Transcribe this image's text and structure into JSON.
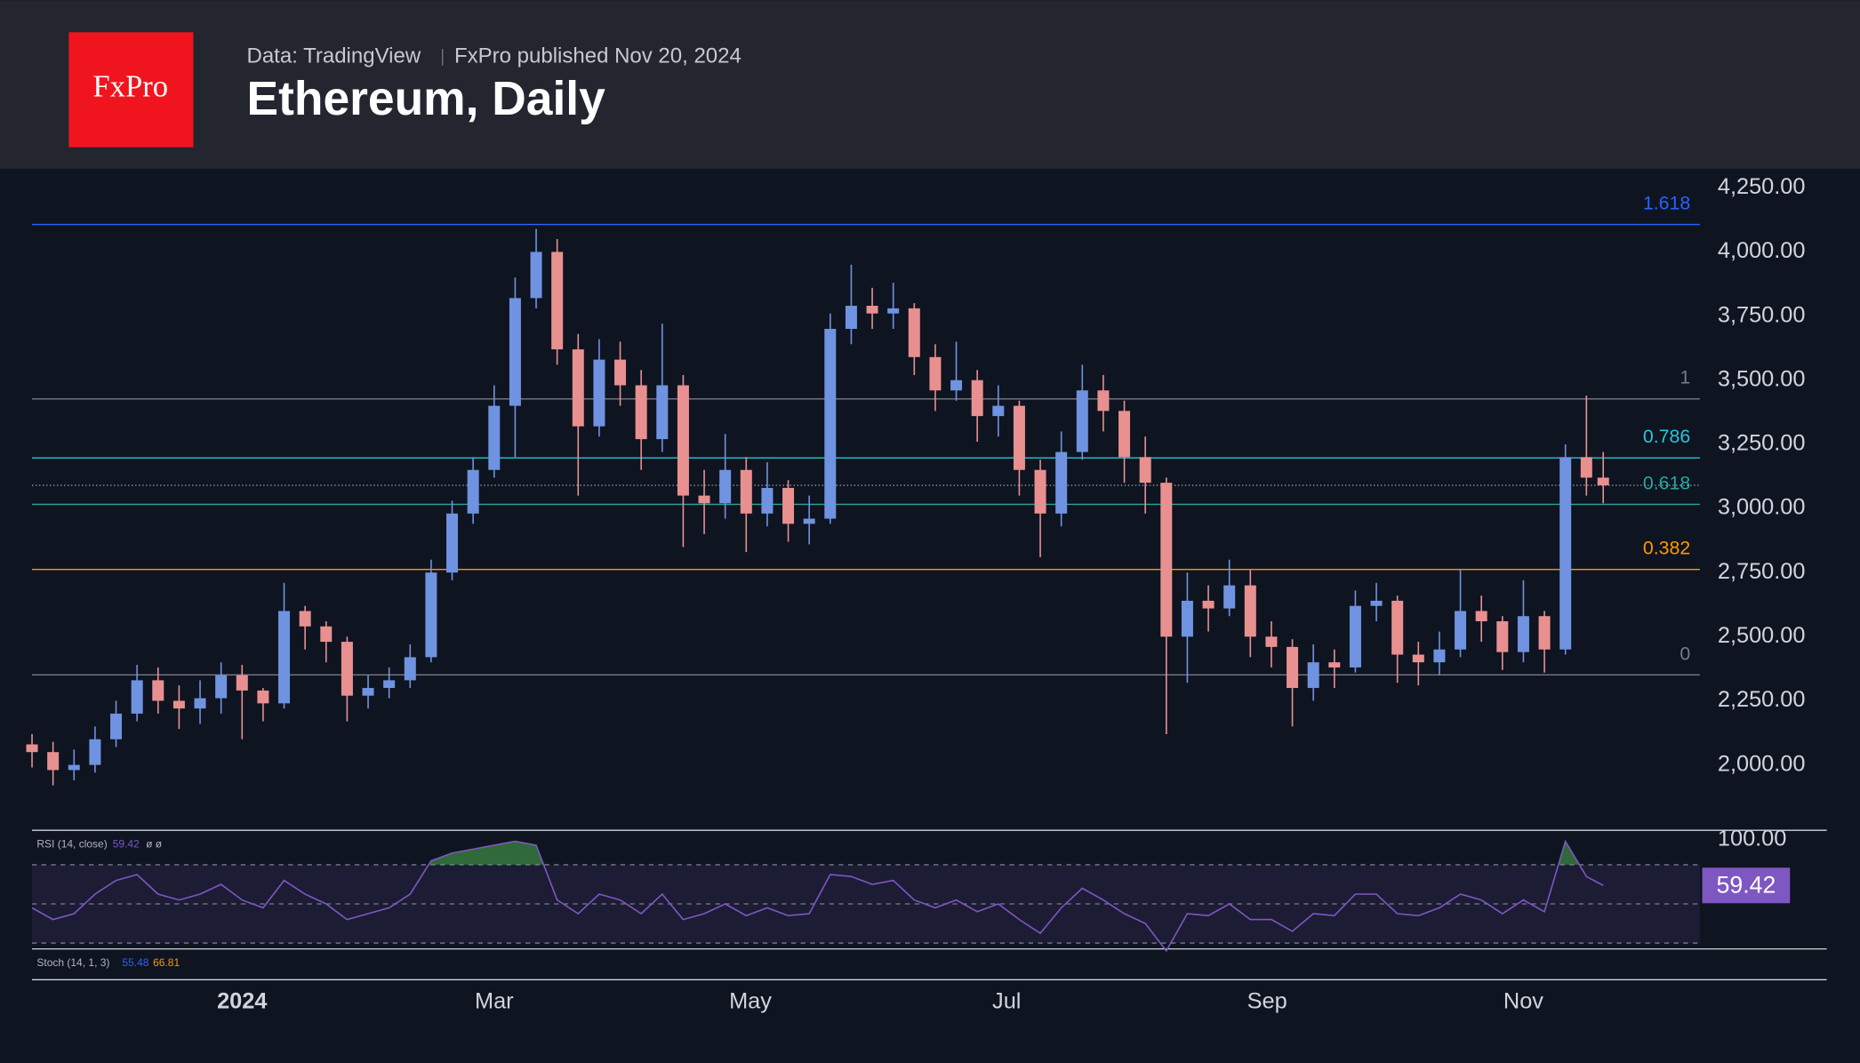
{
  "chart_data": {
    "type": "candlestick",
    "brand": "FxPro",
    "source": "Data: TradingView",
    "published": "FxPro published Nov 20, 2024",
    "title": "Ethereum, Daily",
    "up_color": "#6f93e0",
    "down_color": "#e89090",
    "x": [
      -50,
      -45,
      -40,
      -35,
      -30,
      -25,
      -20,
      -15,
      -10,
      -5,
      0,
      5,
      10,
      15,
      20,
      25,
      30,
      35,
      40,
      45,
      50,
      55,
      60,
      65,
      70,
      75,
      80,
      85,
      90,
      95,
      100,
      105,
      110,
      115,
      120,
      125,
      130,
      135,
      140,
      145,
      150,
      155,
      160,
      165,
      170,
      175,
      180,
      185,
      190,
      195,
      200,
      205,
      210,
      215,
      220,
      225,
      230,
      235,
      240,
      245,
      250,
      255,
      260,
      265,
      270,
      275,
      280,
      285,
      290,
      295,
      300,
      305,
      310,
      315,
      320,
      324
    ],
    "open": [
      2080,
      2050,
      1980,
      2000,
      2100,
      2200,
      2330,
      2250,
      2220,
      2260,
      2350,
      2290,
      2240,
      2600,
      2540,
      2480,
      2270,
      2300,
      2330,
      2420,
      2750,
      2980,
      3150,
      3400,
      3820,
      4000,
      3620,
      3320,
      3580,
      3480,
      3270,
      3480,
      3050,
      3020,
      3150,
      2980,
      3080,
      2940,
      2960,
      3700,
      3790,
      3760,
      3780,
      3590,
      3460,
      3500,
      3360,
      3400,
      3150,
      2980,
      3220,
      3460,
      3380,
      3200,
      3100,
      2500,
      2640,
      2610,
      2700,
      2500,
      2460,
      2300,
      2400,
      2380,
      2620,
      2640,
      2430,
      2400,
      2450,
      2600,
      2560,
      2440,
      2580,
      2450,
      3200,
      3120
    ],
    "high": [
      2120,
      2090,
      2060,
      2150,
      2250,
      2390,
      2380,
      2310,
      2330,
      2400,
      2390,
      2300,
      2710,
      2620,
      2560,
      2500,
      2350,
      2380,
      2470,
      2800,
      3030,
      3200,
      3480,
      3900,
      4090,
      4050,
      3680,
      3660,
      3650,
      3540,
      3720,
      3520,
      3150,
      3290,
      3200,
      3180,
      3110,
      3050,
      3760,
      3950,
      3860,
      3880,
      3800,
      3640,
      3650,
      3540,
      3480,
      3420,
      3190,
      3300,
      3560,
      3520,
      3420,
      3280,
      3120,
      2750,
      2700,
      2800,
      2760,
      2560,
      2490,
      2470,
      2450,
      2680,
      2710,
      2660,
      2480,
      2520,
      2760,
      2660,
      2580,
      2720,
      2600,
      3250,
      3440,
      3220
    ],
    "low": [
      1990,
      1920,
      1940,
      1970,
      2070,
      2170,
      2200,
      2140,
      2160,
      2200,
      2100,
      2170,
      2220,
      2450,
      2400,
      2170,
      2220,
      2260,
      2300,
      2400,
      2720,
      2940,
      3120,
      3200,
      3780,
      3560,
      3050,
      3280,
      3400,
      3150,
      3220,
      2850,
      2900,
      2960,
      2830,
      2930,
      2870,
      2860,
      2940,
      3640,
      3700,
      3700,
      3520,
      3380,
      3420,
      3260,
      3280,
      3050,
      2810,
      2930,
      3190,
      3300,
      3100,
      2980,
      2120,
      2320,
      2520,
      2580,
      2420,
      2380,
      2150,
      2250,
      2300,
      2360,
      2560,
      2320,
      2310,
      2350,
      2420,
      2480,
      2370,
      2400,
      2360,
      2430,
      3050,
      3020
    ],
    "close": [
      2050,
      1980,
      2000,
      2100,
      2200,
      2330,
      2250,
      2220,
      2260,
      2350,
      2290,
      2240,
      2600,
      2540,
      2480,
      2270,
      2300,
      2330,
      2420,
      2750,
      2980,
      3150,
      3400,
      3820,
      4000,
      3620,
      3320,
      3580,
      3480,
      3270,
      3480,
      3050,
      3020,
      3150,
      2980,
      3080,
      2940,
      2960,
      3700,
      3790,
      3760,
      3780,
      3590,
      3460,
      3500,
      3360,
      3400,
      3150,
      2980,
      3220,
      3460,
      3380,
      3200,
      3100,
      2500,
      2640,
      2610,
      2700,
      2500,
      2460,
      2300,
      2400,
      2380,
      2620,
      2640,
      2430,
      2400,
      2450,
      2600,
      2560,
      2440,
      2580,
      2450,
      3200,
      3120,
      3090
    ],
    "xlim": [
      -50,
      347
    ],
    "xticks": [
      {
        "value": 0,
        "label": "2024"
      },
      {
        "value": 60,
        "label": "Mar"
      },
      {
        "value": 121,
        "label": "May"
      },
      {
        "value": 182,
        "label": "Jul"
      },
      {
        "value": 244,
        "label": "Sep"
      },
      {
        "value": 305,
        "label": "Nov"
      }
    ],
    "ylim": [
      1745,
      4320
    ],
    "yticks": [
      {
        "value": 4250,
        "label": "4,250.00"
      },
      {
        "value": 4000,
        "label": "4,000.00"
      },
      {
        "value": 3750,
        "label": "3,750.00"
      },
      {
        "value": 3500,
        "label": "3,500.00"
      },
      {
        "value": 3250,
        "label": "3,250.00"
      },
      {
        "value": 3000,
        "label": "3,000.00"
      },
      {
        "value": 2750,
        "label": "2,750.00"
      },
      {
        "value": 2500,
        "label": "2,500.00"
      },
      {
        "value": 2250,
        "label": "2,250.00"
      },
      {
        "value": 2000,
        "label": "2,000.00"
      }
    ],
    "fib": [
      {
        "ratio": 1.618,
        "price": 4107,
        "color": "#2962ff"
      },
      {
        "ratio": 1,
        "price": 3427,
        "color": "#787b86"
      },
      {
        "ratio": 0.786,
        "price": 3197,
        "color": "#26c6da"
      },
      {
        "ratio": 0.618,
        "price": 3016,
        "color": "#26a69a"
      },
      {
        "ratio": 0.382,
        "price": 2762,
        "color": "#ff9800"
      },
      {
        "ratio": 0,
        "price": 2351,
        "color": "#787b86"
      }
    ],
    "rsi": {
      "label": "RSI (14, close)",
      "value": 59.42,
      "extra": "ø ø",
      "color": "#7e57c2",
      "ylim": [
        27,
        87
      ],
      "levels": [
        70,
        50,
        30
      ],
      "top_tick": {
        "value": 100,
        "label": "100.00"
      },
      "values": [
        48,
        42,
        45,
        55,
        62,
        65,
        55,
        52,
        55,
        60,
        52,
        48,
        62,
        55,
        50,
        42,
        45,
        48,
        55,
        72,
        76,
        78,
        80,
        82,
        80,
        52,
        45,
        55,
        52,
        45,
        55,
        42,
        45,
        50,
        44,
        48,
        44,
        45,
        65,
        64,
        60,
        62,
        52,
        48,
        52,
        46,
        50,
        42,
        35,
        48,
        58,
        52,
        45,
        40,
        26,
        45,
        44,
        50,
        42,
        42,
        36,
        45,
        44,
        55,
        55,
        45,
        44,
        48,
        55,
        52,
        45,
        52,
        46,
        82,
        64,
        59.42
      ]
    },
    "stoch": {
      "label": "Stoch (14, 1, 3)",
      "k": 55.48,
      "d": 66.81,
      "k_color": "#2962ff",
      "d_color": "#ff9800"
    }
  }
}
